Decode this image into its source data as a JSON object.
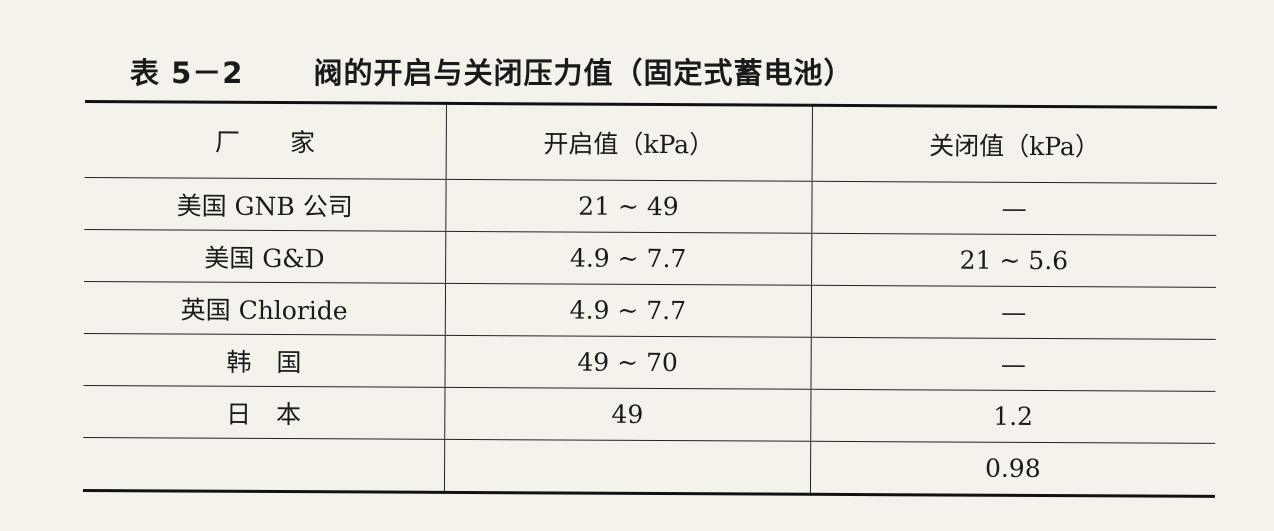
{
  "title": {
    "number": "表 5－2",
    "text": "阀的开启与关闭压力值（固定式蓄电池）"
  },
  "table": {
    "headers": [
      "厂　　家",
      "开启值（kPa）",
      "关闭值（kPa）"
    ],
    "rows": [
      [
        "美国 GNB 公司",
        "21 ~ 49",
        "—"
      ],
      [
        "美国 G&D",
        "4.9 ~ 7.7",
        "21 ~ 5.6"
      ],
      [
        "英国 Chloride",
        "4.9 ~ 7.7",
        "—"
      ],
      [
        "韩　国",
        "49 ~ 70",
        "—"
      ],
      [
        "日　本",
        "49",
        "1.2"
      ],
      [
        "",
        "",
        "0.98"
      ]
    ]
  }
}
